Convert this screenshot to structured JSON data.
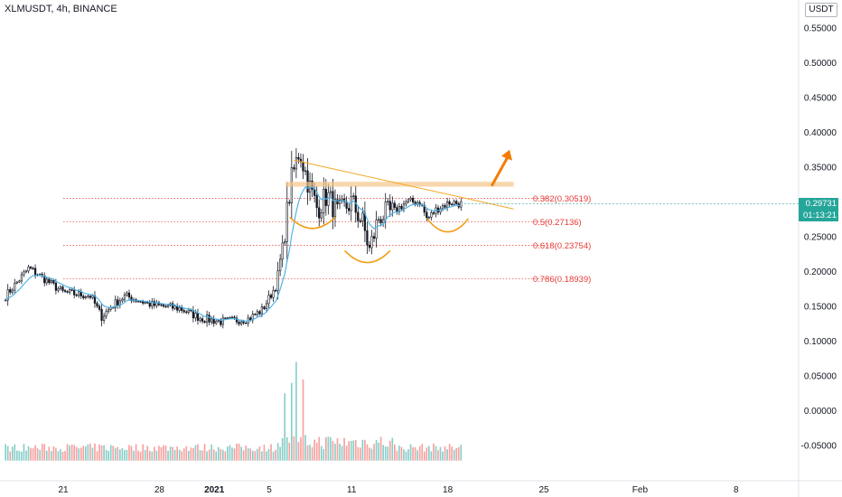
{
  "header": {
    "symbol_line": "XLMUSDT, 4h, BINANCE",
    "unit": "USDT"
  },
  "last_price": {
    "value": "0.29731",
    "timer": "01:13:21",
    "color": "#26a69a"
  },
  "colors": {
    "up": "#26a69a",
    "down": "#ef5350",
    "candle_body": "#131722",
    "ma": "#4fb3e8",
    "trendline": "#f5a623",
    "resistance": "#f5c68a",
    "arrow": "#f57c00",
    "fib": "#e53935",
    "cup": "#f39c12"
  },
  "chart_data": {
    "type": "candlestick",
    "symbol": "XLMUSDT",
    "interval": "4h",
    "exchange": "BINANCE",
    "y_axis": {
      "ticks": [
        "0.55000",
        "0.50000",
        "0.45000",
        "0.40000",
        "0.35000",
        "0.30000",
        "0.25000",
        "0.20000",
        "0.15000",
        "0.10000",
        "0.05000",
        "0.00000",
        "-0.05000"
      ],
      "tick_values": [
        0.55,
        0.5,
        0.45,
        0.4,
        0.35,
        0.3,
        0.25,
        0.2,
        0.15,
        0.1,
        0.05,
        0.0,
        -0.05
      ],
      "ylim": [
        -0.0717,
        0.5754
      ]
    },
    "x_axis": {
      "labels": [
        {
          "text": "21",
          "day": 0
        },
        {
          "text": "28",
          "day": 7
        },
        {
          "text": "2021",
          "day": 11,
          "bold": true
        },
        {
          "text": "5",
          "day": 15
        },
        {
          "text": "11",
          "day": 21
        },
        {
          "text": "18",
          "day": 28
        },
        {
          "text": "25",
          "day": 35
        },
        {
          "text": "Feb",
          "day": 42
        },
        {
          "text": "8",
          "day": 49
        }
      ],
      "day_offset_note": "days from Dec 21"
    },
    "fib_levels": [
      {
        "label": "0.382(0.30519)",
        "value": 0.30519
      },
      {
        "label": "0.5(0.27136)",
        "value": 0.27136
      },
      {
        "label": "0.618(0.23754)",
        "value": 0.23754
      },
      {
        "label": "0.786(0.18939)",
        "value": 0.18939
      }
    ],
    "key_points": [
      {
        "day": -4.2,
        "price": 0.165
      },
      {
        "day": -2.5,
        "price": 0.205
      },
      {
        "day": 0,
        "price": 0.17
      },
      {
        "day": 2,
        "price": 0.165
      },
      {
        "day": 2.8,
        "price": 0.135
      },
      {
        "day": 3.5,
        "price": 0.15
      },
      {
        "day": 4.5,
        "price": 0.165
      },
      {
        "day": 6.5,
        "price": 0.152
      },
      {
        "day": 8.5,
        "price": 0.147
      },
      {
        "day": 10,
        "price": 0.133
      },
      {
        "day": 11.5,
        "price": 0.128
      },
      {
        "day": 13.5,
        "price": 0.132
      },
      {
        "day": 14.5,
        "price": 0.145
      },
      {
        "day": 15.5,
        "price": 0.18
      },
      {
        "day": 16,
        "price": 0.24
      },
      {
        "day": 16.6,
        "price": 0.33
      },
      {
        "day": 17.2,
        "price": 0.375
      },
      {
        "day": 17.8,
        "price": 0.33
      },
      {
        "day": 18.5,
        "price": 0.29
      },
      {
        "day": 19.2,
        "price": 0.31
      },
      {
        "day": 20,
        "price": 0.283
      },
      {
        "day": 21,
        "price": 0.3
      },
      {
        "day": 21.8,
        "price": 0.27
      },
      {
        "day": 22.3,
        "price": 0.23
      },
      {
        "day": 23,
        "price": 0.28
      },
      {
        "day": 24,
        "price": 0.285
      },
      {
        "day": 25,
        "price": 0.3
      },
      {
        "day": 26,
        "price": 0.3
      },
      {
        "day": 26.5,
        "price": 0.275
      },
      {
        "day": 27.2,
        "price": 0.29
      },
      {
        "day": 28.2,
        "price": 0.3
      },
      {
        "day": 29,
        "price": 0.297
      }
    ],
    "volume_spikes": [
      {
        "day": 17.0,
        "value": 0.07
      },
      {
        "day": 16.7,
        "value": 0.04
      },
      {
        "day": 17.4,
        "value": 0.045
      },
      {
        "day": 16.2,
        "value": 0.025
      }
    ],
    "annotations": {
      "trendline": {
        "from": {
          "day": 16.8,
          "price": 0.36
        },
        "to": {
          "day": 32.8,
          "price": 0.29
        }
      },
      "resistance_zone": {
        "from_day": 16.2,
        "to_day": 32.8,
        "low": 0.322,
        "high": 0.329
      },
      "arrow": {
        "from": {
          "day": 31.2,
          "price": 0.323
        },
        "to": {
          "day": 32.5,
          "price": 0.375
        }
      },
      "cups": [
        {
          "from_day": 16.5,
          "to_day": 19.8,
          "bottom": 0.262,
          "top": 0.278
        },
        {
          "from_day": 20.5,
          "to_day": 23.8,
          "bottom": 0.213,
          "top": 0.23
        },
        {
          "from_day": 26.5,
          "to_day": 29.5,
          "bottom": 0.257,
          "top": 0.276
        }
      ]
    }
  }
}
